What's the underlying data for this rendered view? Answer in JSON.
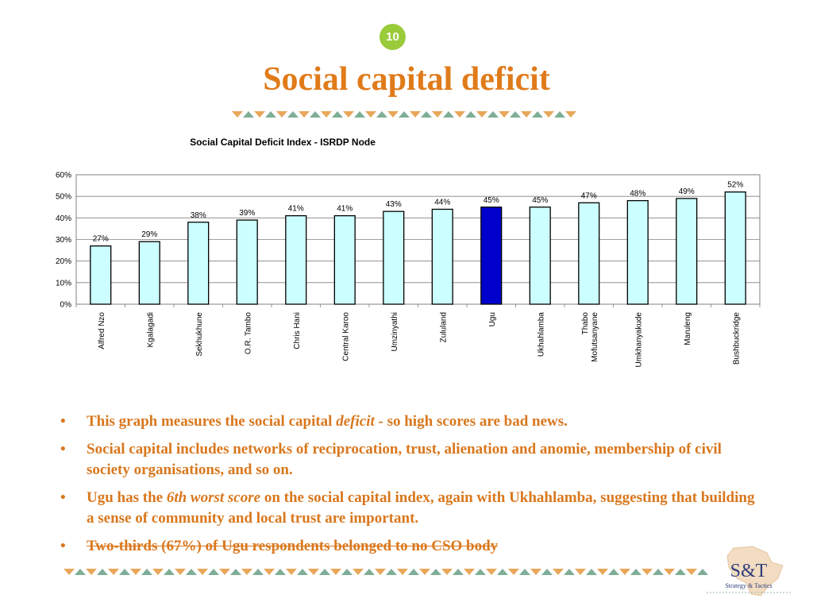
{
  "page_number": "10",
  "title": "Social capital deficit",
  "colors": {
    "title": "#e07b1a",
    "bar": "#ccffff",
    "bar_highlight": "#0000cc",
    "badge": "#9acb3a",
    "deco_orange": "#e8a75a",
    "deco_green": "#7fae96"
  },
  "chart_data": {
    "type": "bar",
    "title": "Social Capital Deficit Index - ISRDP Node",
    "categories": [
      "Alfred Nzo",
      "Kgalagadi",
      "Sekhukhune",
      "O.R. Tambo",
      "Chris Hani",
      "Central Karoo",
      "Umzinyathi",
      "Zululand",
      "Ugu",
      "Ukhahlamba",
      "Thabo Mofutsanyane",
      "Umkhanyakude",
      "Maruleng",
      "Bushbuckridge"
    ],
    "values": [
      27,
      29,
      38,
      39,
      41,
      41,
      43,
      44,
      45,
      45,
      47,
      48,
      49,
      52
    ],
    "data_labels": [
      "27%",
      "29%",
      "38%",
      "39%",
      "41%",
      "41%",
      "43%",
      "44%",
      "45%",
      "45%",
      "47%",
      "48%",
      "49%",
      "52%"
    ],
    "highlight_category": "Ugu",
    "ylim": [
      0,
      60
    ],
    "yticks": [
      "0%",
      "10%",
      "20%",
      "30%",
      "40%",
      "50%",
      "60%"
    ],
    "grid": true,
    "xlabel": "",
    "ylabel": ""
  },
  "bullets": [
    {
      "before": "This graph measures the social capital ",
      "em": "deficit",
      "after": " - so high scores are bad news."
    },
    {
      "before": "Social capital includes networks of reciprocation, trust, alienation and anomie, membership of civil society organisations, and so on.",
      "em": "",
      "after": ""
    },
    {
      "before": "Ugu has the ",
      "em": "6th worst score",
      "after": " on the social capital index, again with Ukhahlamba, suggesting that building a sense of community and local trust are important."
    },
    {
      "before": "Two-thirds (67%) of Ugu respondents belonged to no CSO body",
      "em": "",
      "after": ""
    }
  ],
  "logo": {
    "main": "S&T",
    "sub": "Strategy & Tactics"
  }
}
